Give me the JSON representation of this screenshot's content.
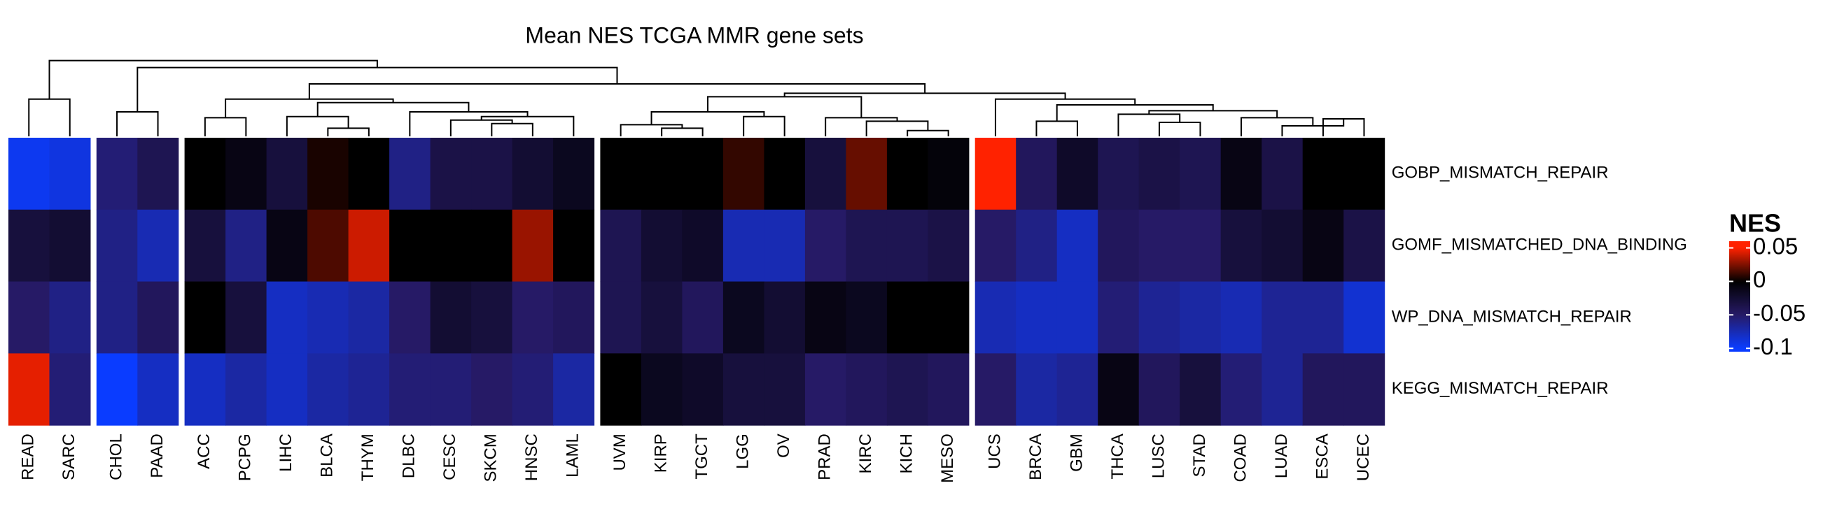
{
  "chart_data": {
    "type": "heatmap",
    "title": "Mean NES TCGA MMR gene sets",
    "rows": [
      "GOBP_MISMATCH_REPAIR",
      "GOMF_MISMATCHED_DNA_BINDING",
      "WP_DNA_MISMATCH_REPAIR",
      "KEGG_MISMATCH_REPAIR"
    ],
    "columns": [
      "READ",
      "SARC",
      "CHOL",
      "PAAD",
      "ACC",
      "PCPG",
      "LIHC",
      "BLCA",
      "THYM",
      "DLBC",
      "CESC",
      "SKCM",
      "HNSC",
      "LAML",
      "UVM",
      "KIRP",
      "TGCT",
      "LGG",
      "OV",
      "PRAD",
      "KIRC",
      "KICH",
      "MESO",
      "UCS",
      "BRCA",
      "GBM",
      "THCA",
      "LUSC",
      "STAD",
      "COAD",
      "LUAD",
      "ESCA",
      "UCEC"
    ],
    "values": [
      [
        -0.095,
        -0.09,
        -0.055,
        -0.04,
        0,
        -0.01,
        -0.03,
        0.005,
        0,
        -0.06,
        -0.035,
        -0.035,
        -0.025,
        -0.015,
        0,
        0,
        0,
        0.01,
        0,
        -0.03,
        0.02,
        0,
        -0.005,
        0.05,
        -0.045,
        -0.02,
        -0.04,
        -0.035,
        -0.04,
        -0.01,
        -0.035,
        0,
        0
      ],
      [
        -0.03,
        -0.025,
        -0.06,
        -0.075,
        -0.03,
        -0.06,
        -0.01,
        0.015,
        0.04,
        0,
        0,
        0,
        0.03,
        0,
        -0.04,
        -0.025,
        -0.02,
        -0.075,
        -0.075,
        -0.05,
        -0.04,
        -0.04,
        -0.035,
        -0.05,
        -0.06,
        -0.08,
        -0.045,
        -0.05,
        -0.05,
        -0.03,
        -0.025,
        -0.01,
        -0.035
      ],
      [
        -0.05,
        -0.06,
        -0.06,
        -0.045,
        0,
        -0.03,
        -0.08,
        -0.075,
        -0.07,
        -0.05,
        -0.025,
        -0.03,
        -0.05,
        -0.045,
        -0.04,
        -0.03,
        -0.045,
        -0.015,
        -0.025,
        -0.01,
        -0.015,
        0,
        0,
        -0.075,
        -0.08,
        -0.08,
        -0.055,
        -0.065,
        -0.07,
        -0.075,
        -0.065,
        -0.065,
        -0.085
      ],
      [
        0.045,
        -0.055,
        -0.1,
        -0.08,
        -0.08,
        -0.07,
        -0.08,
        -0.07,
        -0.065,
        -0.055,
        -0.055,
        -0.05,
        -0.055,
        -0.07,
        0,
        -0.015,
        -0.02,
        -0.03,
        -0.03,
        -0.05,
        -0.045,
        -0.04,
        -0.045,
        -0.05,
        -0.07,
        -0.065,
        -0.01,
        -0.045,
        -0.03,
        -0.055,
        -0.065,
        -0.045,
        -0.045
      ]
    ],
    "colorbar_title": "NES",
    "clim": [
      -0.105,
      0.06
    ],
    "cticks": [
      0.05,
      0,
      -0.05,
      -0.1
    ],
    "colorscale": [
      {
        "value": -0.1,
        "color": "#0a3cff"
      },
      {
        "value": -0.05,
        "color": "#261a66"
      },
      {
        "value": 0,
        "color": "#000000"
      },
      {
        "value": 0.05,
        "color": "#ff2200"
      }
    ]
  }
}
